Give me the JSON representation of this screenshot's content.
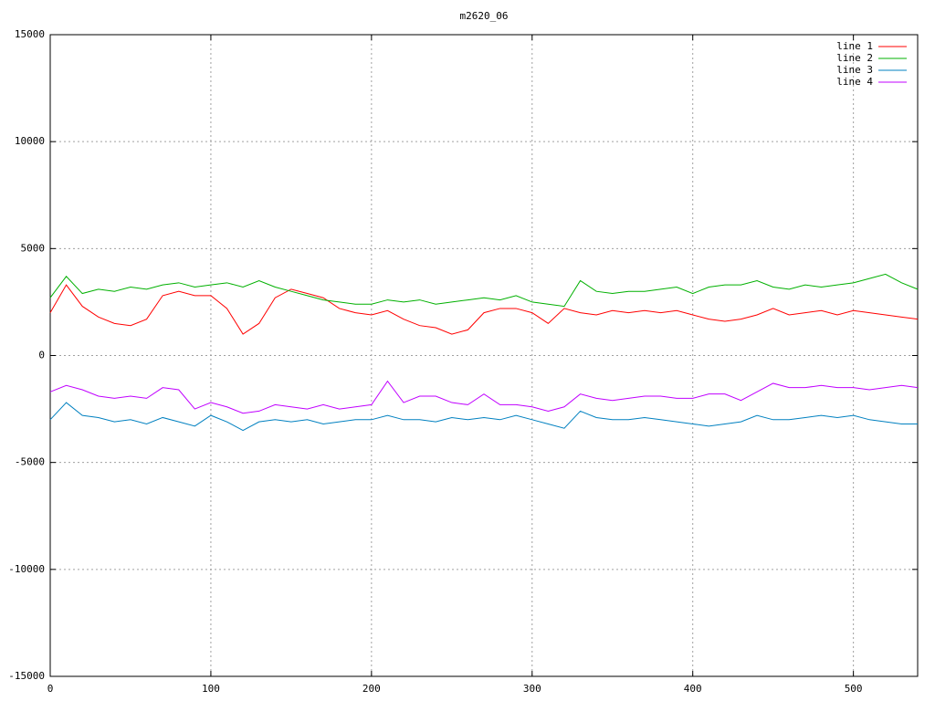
{
  "chart_data": {
    "type": "line",
    "title": "m2620_06",
    "x": [
      0,
      10,
      20,
      30,
      40,
      50,
      60,
      70,
      80,
      90,
      100,
      110,
      120,
      130,
      140,
      150,
      160,
      170,
      180,
      190,
      200,
      210,
      220,
      230,
      240,
      250,
      260,
      270,
      280,
      290,
      300,
      310,
      320,
      330,
      340,
      350,
      360,
      370,
      380,
      390,
      400,
      410,
      420,
      430,
      440,
      450,
      460,
      470,
      480,
      490,
      500,
      510,
      520,
      530,
      540
    ],
    "series": [
      {
        "name": "line 1",
        "color": "#ff0000",
        "values": [
          2000,
          3300,
          2300,
          1800,
          1500,
          1400,
          1700,
          2800,
          3000,
          2800,
          2800,
          2200,
          1000,
          1500,
          2700,
          3100,
          2900,
          2700,
          2200,
          2000,
          1900,
          2100,
          1700,
          1400,
          1300,
          1000,
          1200,
          2000,
          2200,
          2200,
          2000,
          1500,
          2200,
          2000,
          1900,
          2100,
          2000,
          2100,
          2000,
          2100,
          1900,
          1700,
          1600,
          1700,
          1900,
          2200,
          1900,
          2000,
          2100,
          1900,
          2100,
          2000,
          1900,
          1800,
          1700
        ]
      },
      {
        "name": "line 2",
        "color": "#00b000",
        "values": [
          2700,
          3700,
          2900,
          3100,
          3000,
          3200,
          3100,
          3300,
          3400,
          3200,
          3300,
          3400,
          3200,
          3500,
          3200,
          3000,
          2800,
          2600,
          2500,
          2400,
          2400,
          2600,
          2500,
          2600,
          2400,
          2500,
          2600,
          2700,
          2600,
          2800,
          2500,
          2400,
          2300,
          3500,
          3000,
          2900,
          3000,
          3000,
          3100,
          3200,
          2900,
          3200,
          3300,
          3300,
          3500,
          3200,
          3100,
          3300,
          3200,
          3300,
          3400,
          3600,
          3800,
          3400,
          3100
        ]
      },
      {
        "name": "line 3",
        "color": "#0080c0",
        "values": [
          -3000,
          -2200,
          -2800,
          -2900,
          -3100,
          -3000,
          -3200,
          -2900,
          -3100,
          -3300,
          -2800,
          -3100,
          -3500,
          -3100,
          -3000,
          -3100,
          -3000,
          -3200,
          -3100,
          -3000,
          -3000,
          -2800,
          -3000,
          -3000,
          -3100,
          -2900,
          -3000,
          -2900,
          -3000,
          -2800,
          -3000,
          -3200,
          -3400,
          -2600,
          -2900,
          -3000,
          -3000,
          -2900,
          -3000,
          -3100,
          -3200,
          -3300,
          -3200,
          -3100,
          -2800,
          -3000,
          -3000,
          -2900,
          -2800,
          -2900,
          -2800,
          -3000,
          -3100,
          -3200,
          -3200
        ]
      },
      {
        "name": "line 4",
        "color": "#c000ff",
        "values": [
          -1700,
          -1400,
          -1600,
          -1900,
          -2000,
          -1900,
          -2000,
          -1500,
          -1600,
          -2500,
          -2200,
          -2400,
          -2700,
          -2600,
          -2300,
          -2400,
          -2500,
          -2300,
          -2500,
          -2400,
          -2300,
          -1200,
          -2200,
          -1900,
          -1900,
          -2200,
          -2300,
          -1800,
          -2300,
          -2300,
          -2400,
          -2600,
          -2400,
          -1800,
          -2000,
          -2100,
          -2000,
          -1900,
          -1900,
          -2000,
          -2000,
          -1800,
          -1800,
          -2100,
          -1700,
          -1300,
          -1500,
          -1500,
          -1400,
          -1500,
          -1500,
          -1600,
          -1500,
          -1400,
          -1500
        ]
      }
    ],
    "xlim": [
      0,
      540
    ],
    "xticks": [
      0,
      100,
      200,
      300,
      400,
      500
    ],
    "ylim": [
      -15000,
      15000
    ],
    "yticks": [
      -15000,
      -10000,
      -5000,
      0,
      5000,
      10000,
      15000
    ],
    "grid": true,
    "legend": "top-right"
  }
}
